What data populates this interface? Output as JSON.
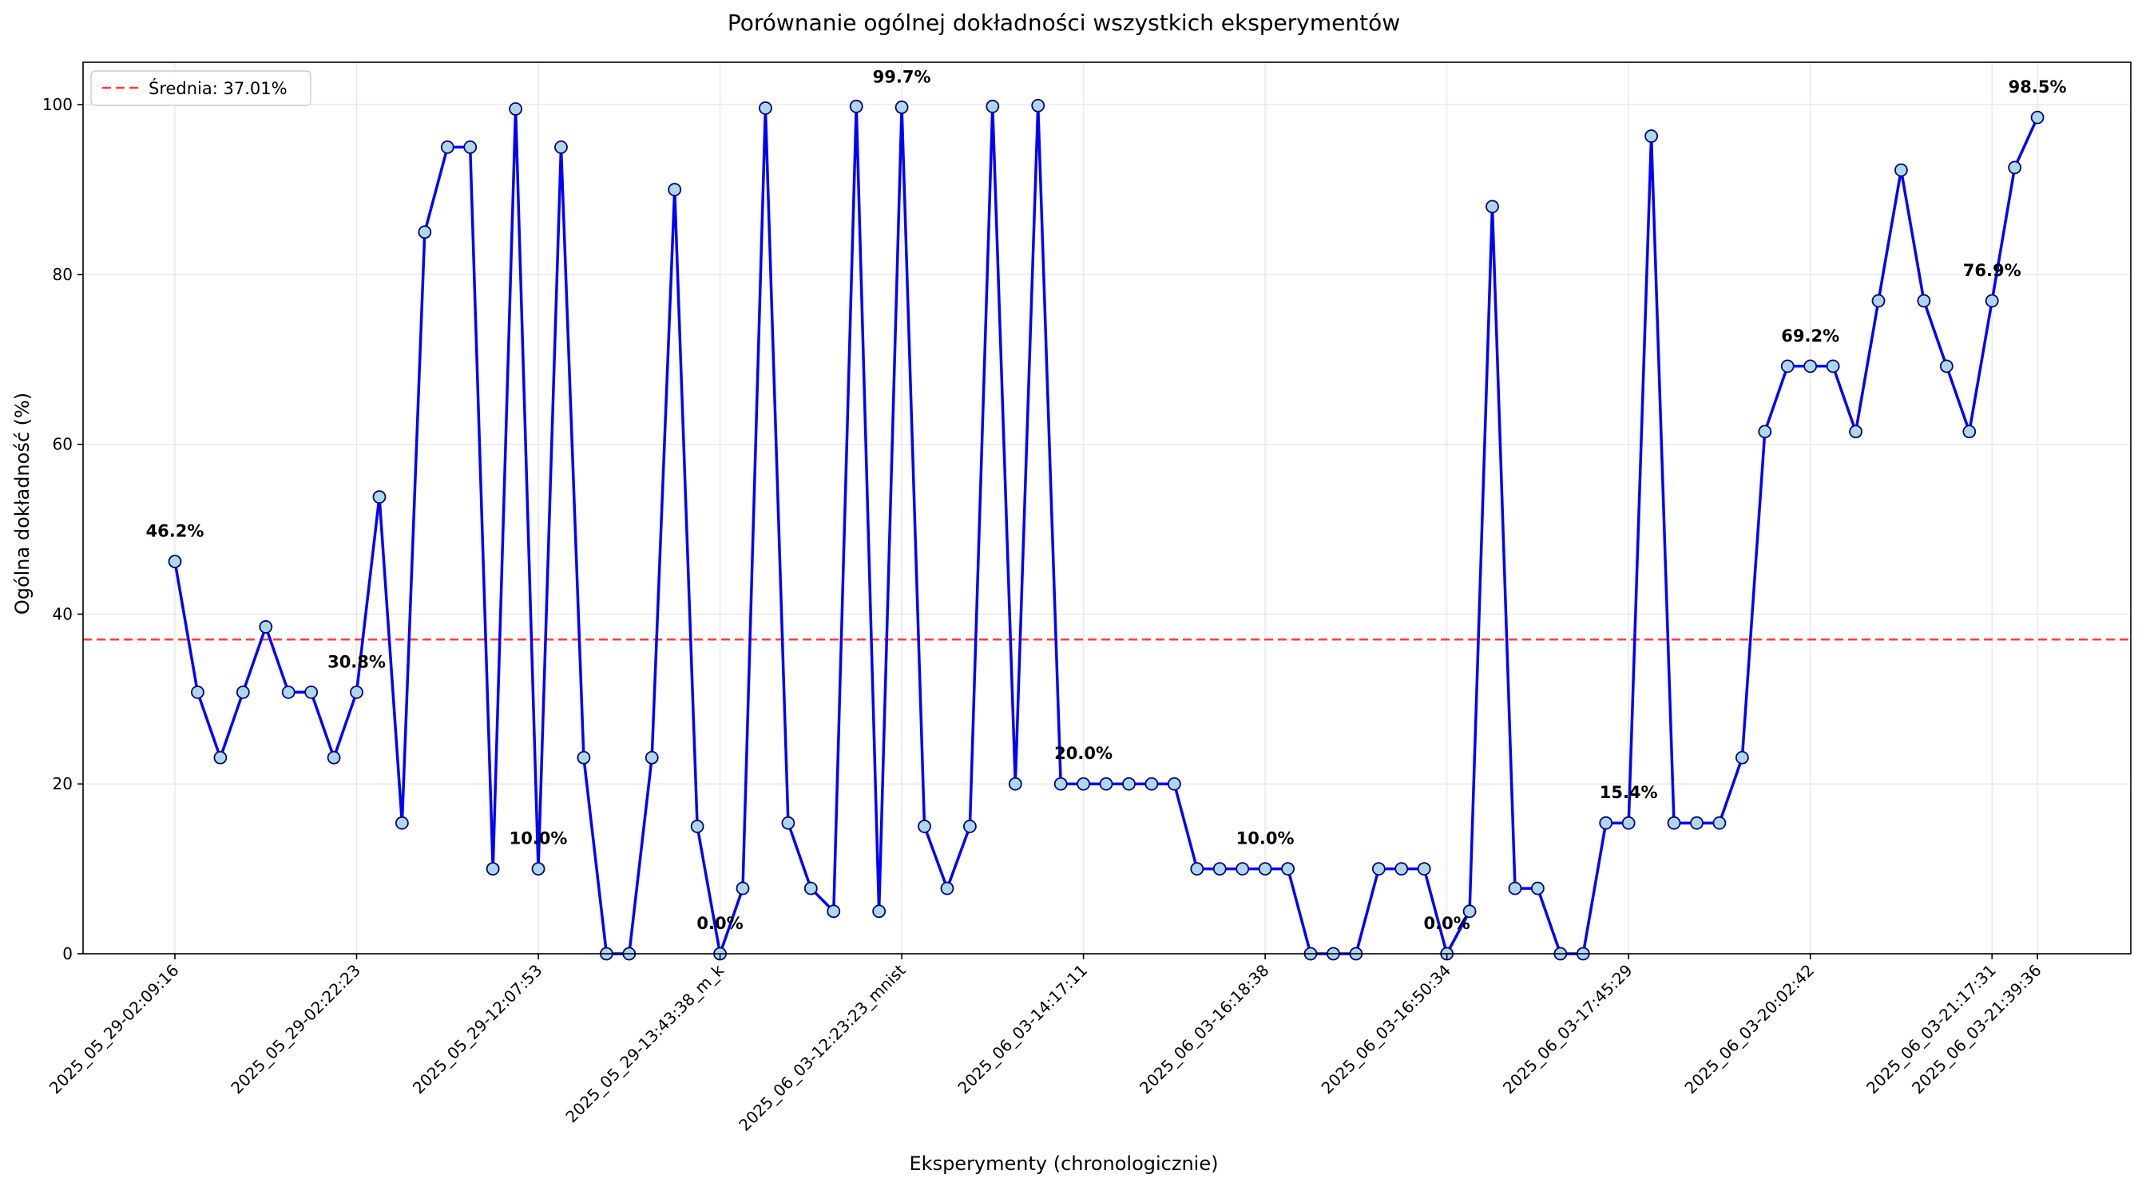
{
  "chart_data": {
    "type": "line",
    "title": "Porównanie ogólnej dokładności wszystkich eksperymentów",
    "xlabel": "Eksperymenty (chronologicznie)",
    "ylabel": "Ogólna dokładność (%)",
    "ylim": [
      0,
      105
    ],
    "yticks": [
      0,
      20,
      40,
      60,
      80,
      100
    ],
    "grid": true,
    "legend_position": "top-left",
    "colors": {
      "line": "#0000ff",
      "marker_fill": "#add8e6",
      "marker_edge": "#000080",
      "mean_line": "#ff0000"
    },
    "mean": {
      "value": 37.01,
      "label": "Średnia: 37.01%"
    },
    "x_tick_labels": [
      {
        "index": 0,
        "label": "2025_05_29-02:09:16"
      },
      {
        "index": 8,
        "label": "2025_05_29-02:22:23"
      },
      {
        "index": 16,
        "label": "2025_05_29-12:07:53"
      },
      {
        "index": 24,
        "label": "2025_05_29-13:43:38_m_k"
      },
      {
        "index": 32,
        "label": "2025_06_03-12:23:23_mnist"
      },
      {
        "index": 40,
        "label": "2025_06_03-14:17:11"
      },
      {
        "index": 48,
        "label": "2025_06_03-16:18:38"
      },
      {
        "index": 56,
        "label": "2025_06_03-16:50:34"
      },
      {
        "index": 64,
        "label": "2025_06_03-17:45:29"
      },
      {
        "index": 72,
        "label": "2025_06_03-20:02:42"
      },
      {
        "index": 80,
        "label": "2025_06_03-21:17:31"
      },
      {
        "index": 82,
        "label": "2025_06_03-21:39:36"
      }
    ],
    "series": [
      {
        "values": [
          46.2,
          30.8,
          23.1,
          30.8,
          38.5,
          30.8,
          30.8,
          23.1,
          30.8,
          53.8,
          15.4,
          85.0,
          95.0,
          95.0,
          10.0,
          99.5,
          10.0,
          95.0,
          23.1,
          0.0,
          0.0,
          23.1,
          90.0,
          15.0,
          0.0,
          7.7,
          99.6,
          15.4,
          7.7,
          5.0,
          99.8,
          5.0,
          99.7,
          15.0,
          7.7,
          15.0,
          99.8,
          20.0,
          99.9,
          20.0,
          20.0,
          20.0,
          20.0,
          20.0,
          20.0,
          10.0,
          10.0,
          10.0,
          10.0,
          10.0,
          0.0,
          0.0,
          0.0,
          10.0,
          10.0,
          10.0,
          0.0,
          5.0,
          88.0,
          7.7,
          7.7,
          0.0,
          0.0,
          15.4,
          15.4,
          96.3,
          15.4,
          15.4,
          15.4,
          23.1,
          61.5,
          69.2,
          69.2,
          69.2,
          61.5,
          76.9,
          92.3,
          76.9,
          69.2,
          61.5,
          76.9,
          92.6,
          98.5
        ]
      }
    ],
    "annotations": [
      {
        "index": 0,
        "text": "46.2%"
      },
      {
        "index": 8,
        "text": "30.8%"
      },
      {
        "index": 16,
        "text": "10.0%"
      },
      {
        "index": 24,
        "text": "0.0%"
      },
      {
        "index": 32,
        "text": "99.7%"
      },
      {
        "index": 40,
        "text": "20.0%"
      },
      {
        "index": 48,
        "text": "10.0%"
      },
      {
        "index": 56,
        "text": "0.0%"
      },
      {
        "index": 64,
        "text": "15.4%"
      },
      {
        "index": 72,
        "text": "69.2%"
      },
      {
        "index": 80,
        "text": "76.9%"
      },
      {
        "index": 82,
        "text": "98.5%"
      }
    ]
  }
}
